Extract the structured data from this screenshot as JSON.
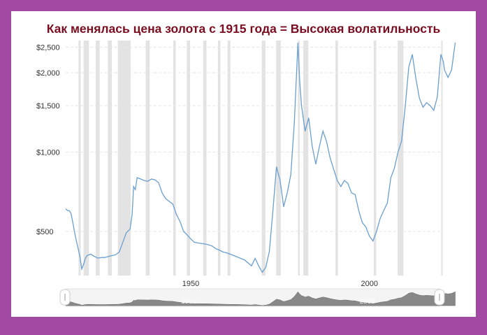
{
  "title": "Как менялась цена золота с 1915 года = Высокая волатильность",
  "colors": {
    "background": "#a24aa3",
    "title": "#7a0c1f",
    "line": "#6a9fcf",
    "recession": "#e3e3e3",
    "navigator_fill": "#888888"
  },
  "chart_data": {
    "type": "line",
    "title": "Как менялась цена золота с 1915 года = Высокая волатильность",
    "xlabel": "",
    "ylabel": "",
    "y_scale": "log",
    "xlim": [
      1915,
      2020
    ],
    "ylim": [
      340,
      2650
    ],
    "y_ticks": [
      {
        "value": 500,
        "label": "$500"
      },
      {
        "value": 1000,
        "label": "$1,000"
      },
      {
        "value": 1500,
        "label": "$1,500"
      },
      {
        "value": 2000,
        "label": "$2,000"
      },
      {
        "value": 2500,
        "label": "$2,500"
      }
    ],
    "x_ticks": [
      {
        "value": 1950,
        "label": "1950"
      },
      {
        "value": 2000,
        "label": "2000"
      }
    ],
    "grid": "horizontal dashed",
    "recessions": [
      [
        1918.6,
        1919.2
      ],
      [
        1920.0,
        1921.5
      ],
      [
        1923.4,
        1924.5
      ],
      [
        1926.8,
        1927.9
      ],
      [
        1929.6,
        1933.2
      ],
      [
        1937.4,
        1938.5
      ],
      [
        1945.1,
        1945.8
      ],
      [
        1948.9,
        1949.8
      ],
      [
        1953.5,
        1954.4
      ],
      [
        1957.6,
        1958.3
      ],
      [
        1960.3,
        1961.1
      ],
      [
        1969.9,
        1970.9
      ],
      [
        1973.9,
        1975.2
      ],
      [
        1980.0,
        1980.5
      ],
      [
        1981.5,
        1982.9
      ],
      [
        1990.5,
        1991.2
      ],
      [
        2001.2,
        2001.9
      ],
      [
        2007.9,
        2009.5
      ],
      [
        2020.1,
        2020.4
      ]
    ],
    "series": [
      {
        "values": [
          [
            1915.0,
            610
          ],
          [
            1915.5,
            600
          ],
          [
            1916.0,
            600
          ],
          [
            1916.5,
            585
          ],
          [
            1917.0,
            540
          ],
          [
            1917.5,
            495
          ],
          [
            1918.0,
            460
          ],
          [
            1918.5,
            430
          ],
          [
            1919.0,
            400
          ],
          [
            1919.5,
            360
          ],
          [
            1920.0,
            375
          ],
          [
            1920.5,
            395
          ],
          [
            1921.0,
            405
          ],
          [
            1922.0,
            410
          ],
          [
            1923.0,
            402
          ],
          [
            1924.0,
            396
          ],
          [
            1925.0,
            398
          ],
          [
            1926.0,
            398
          ],
          [
            1927.0,
            402
          ],
          [
            1928.0,
            405
          ],
          [
            1929.0,
            408
          ],
          [
            1930.0,
            418
          ],
          [
            1931.0,
            455
          ],
          [
            1932.0,
            495
          ],
          [
            1933.0,
            510
          ],
          [
            1933.6,
            580
          ],
          [
            1934.0,
            740
          ],
          [
            1934.5,
            720
          ],
          [
            1935.0,
            800
          ],
          [
            1936.0,
            790
          ],
          [
            1937.0,
            780
          ],
          [
            1938.0,
            775
          ],
          [
            1939.0,
            790
          ],
          [
            1940.0,
            785
          ],
          [
            1941.0,
            765
          ],
          [
            1942.0,
            700
          ],
          [
            1943.0,
            665
          ],
          [
            1944.0,
            650
          ],
          [
            1945.0,
            635
          ],
          [
            1946.0,
            580
          ],
          [
            1947.0,
            545
          ],
          [
            1948.0,
            500
          ],
          [
            1949.0,
            485
          ],
          [
            1950.0,
            468
          ],
          [
            1951.0,
            455
          ],
          [
            1952.0,
            452
          ],
          [
            1953.0,
            450
          ],
          [
            1954.0,
            448
          ],
          [
            1955.0,
            445
          ],
          [
            1956.0,
            440
          ],
          [
            1957.0,
            430
          ],
          [
            1958.0,
            425
          ],
          [
            1959.0,
            418
          ],
          [
            1960.0,
            415
          ],
          [
            1961.0,
            410
          ],
          [
            1962.0,
            405
          ],
          [
            1963.0,
            400
          ],
          [
            1964.0,
            395
          ],
          [
            1965.0,
            390
          ],
          [
            1966.0,
            380
          ],
          [
            1967.0,
            370
          ],
          [
            1968.0,
            395
          ],
          [
            1969.0,
            370
          ],
          [
            1970.0,
            350
          ],
          [
            1971.0,
            365
          ],
          [
            1972.0,
            420
          ],
          [
            1973.0,
            600
          ],
          [
            1974.0,
            880
          ],
          [
            1975.0,
            780
          ],
          [
            1976.0,
            620
          ],
          [
            1977.0,
            700
          ],
          [
            1978.0,
            820
          ],
          [
            1979.0,
            1300
          ],
          [
            1980.0,
            2600
          ],
          [
            1980.5,
            1850
          ],
          [
            1981.0,
            1500
          ],
          [
            1982.0,
            1200
          ],
          [
            1983.0,
            1350
          ],
          [
            1984.0,
            1050
          ],
          [
            1985.0,
            900
          ],
          [
            1986.0,
            1050
          ],
          [
            1987.0,
            1200
          ],
          [
            1988.0,
            1100
          ],
          [
            1989.0,
            950
          ],
          [
            1990.0,
            860
          ],
          [
            1991.0,
            780
          ],
          [
            1992.0,
            740
          ],
          [
            1993.0,
            780
          ],
          [
            1994.0,
            760
          ],
          [
            1995.0,
            700
          ],
          [
            1996.0,
            690
          ],
          [
            1997.0,
            600
          ],
          [
            1998.0,
            540
          ],
          [
            1999.0,
            520
          ],
          [
            2000.0,
            480
          ],
          [
            2001.0,
            460
          ],
          [
            2002.0,
            500
          ],
          [
            2003.0,
            560
          ],
          [
            2004.0,
            600
          ],
          [
            2005.0,
            640
          ],
          [
            2006.0,
            800
          ],
          [
            2007.0,
            870
          ],
          [
            2008.0,
            1000
          ],
          [
            2009.0,
            1100
          ],
          [
            2010.0,
            1480
          ],
          [
            2011.0,
            2100
          ],
          [
            2012.0,
            2350
          ],
          [
            2013.0,
            1900
          ],
          [
            2014.0,
            1600
          ],
          [
            2015.0,
            1480
          ],
          [
            2016.0,
            1540
          ],
          [
            2017.0,
            1500
          ],
          [
            2018.0,
            1440
          ],
          [
            2019.0,
            1620
          ],
          [
            2020.0,
            2350
          ],
          [
            2020.7,
            2200
          ],
          [
            2021.0,
            2050
          ],
          [
            2022.0,
            1920
          ],
          [
            2023.0,
            2050
          ],
          [
            2024.0,
            2600
          ]
        ]
      }
    ]
  },
  "navigator": {
    "tick_labels": [
      "1950",
      "2000"
    ]
  }
}
